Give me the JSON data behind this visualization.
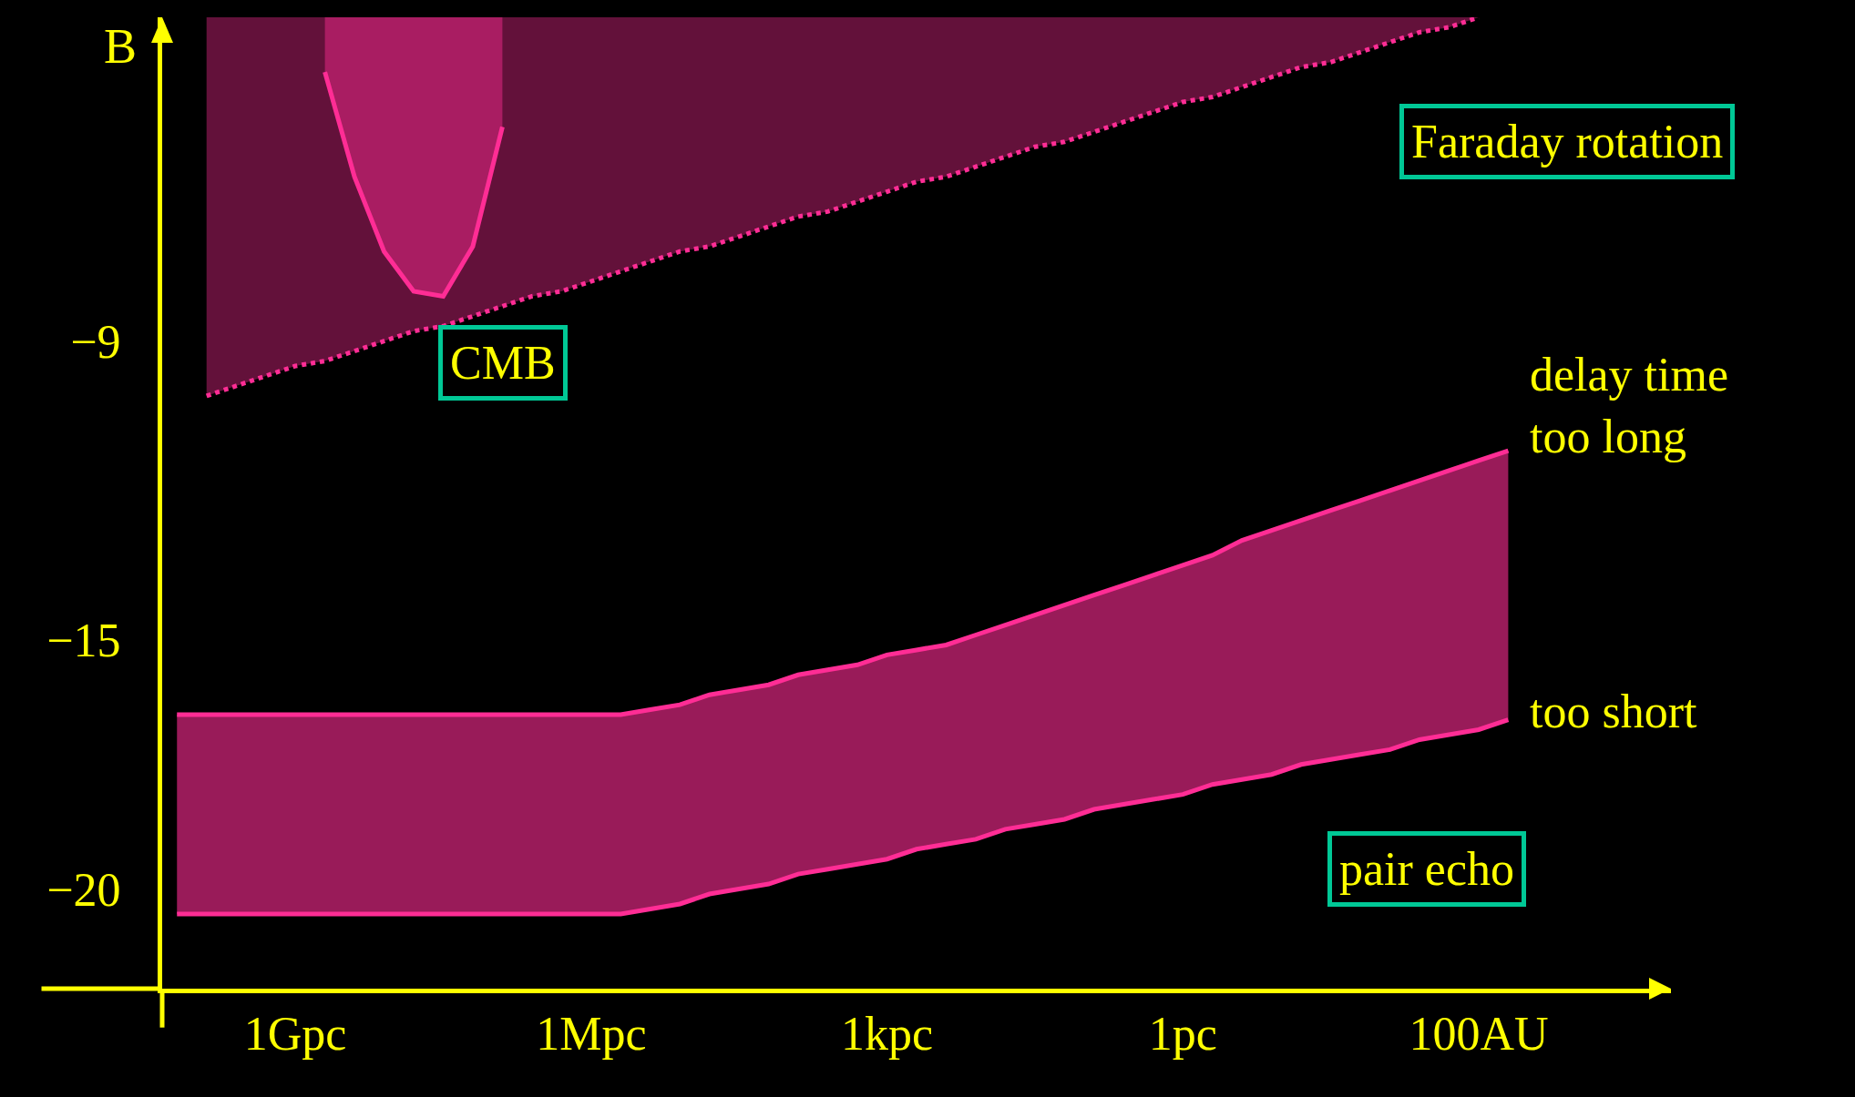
{
  "chart_data": {
    "type": "line",
    "ylabel": "B",
    "categories": [
      null,
      null,
      null,
      null,
      "1Gpc",
      null,
      null,
      null,
      null,
      null,
      null,
      null,
      null,
      null,
      "1Mpc",
      null,
      null,
      null,
      null,
      null,
      null,
      null,
      null,
      null,
      "1kpc",
      null,
      null,
      null,
      null,
      null,
      null,
      null,
      null,
      null,
      "1pc",
      null,
      null,
      null,
      null,
      null,
      null,
      null,
      null,
      null,
      "100AU",
      null
    ],
    "ylim": [
      -22.0,
      -2.5
    ],
    "yticks": [
      -9,
      -15,
      -20
    ],
    "grid": false,
    "series": [
      {
        "color": "#ff2d95",
        "line_style": "dotted",
        "values": [
          null,
          -10.1,
          -9.9,
          -9.7,
          -9.5,
          -9.4,
          -9.2,
          -9.0,
          -8.8,
          -8.7,
          -8.5,
          -8.3,
          -8.1,
          -8.0,
          -7.8,
          -7.6,
          -7.4,
          -7.2,
          -7.1,
          -6.9,
          -6.7,
          -6.5,
          -6.4,
          -6.2,
          -6.0,
          -5.8,
          -5.7,
          -5.5,
          -5.3,
          -5.1,
          -5.0,
          -4.8,
          -4.6,
          -4.4,
          -4.2,
          -4.1,
          -3.9,
          -3.7,
          -3.5,
          -3.4,
          -3.2,
          -3.0,
          -2.8,
          -2.7,
          -2.5,
          null
        ],
        "lower": [
          null,
          -10.1,
          -9.9,
          -9.7,
          -9.5,
          -9.4,
          -9.2,
          -9.0,
          -8.8,
          -8.7,
          -8.5,
          -8.3,
          -8.1,
          -8.0,
          -7.8,
          -7.6,
          -7.4,
          -7.2,
          -7.1,
          -6.9,
          -6.7,
          -6.5,
          -6.4,
          -6.2,
          -6.0,
          -5.8,
          -5.7,
          -5.5,
          -5.3,
          -5.1,
          -5.0,
          -4.8,
          -4.6,
          -4.4,
          -4.2,
          -4.1,
          -3.9,
          -3.7,
          -3.5,
          -3.4,
          -3.2,
          -3.0,
          -2.8,
          -2.7,
          -2.5,
          null
        ],
        "upper": [
          null,
          -2.5,
          -2.5,
          -2.5,
          -2.5,
          -2.5,
          -2.5,
          -2.5,
          -2.5,
          -2.5,
          -2.5,
          -2.5,
          -2.5,
          -2.5,
          -2.5,
          -2.5,
          -2.5,
          -2.5,
          -2.5,
          -2.5,
          -2.5,
          -2.5,
          -2.5,
          -2.5,
          -2.5,
          -2.5,
          -2.5,
          -2.5,
          -2.5,
          -2.5,
          -2.5,
          -2.5,
          -2.5,
          -2.5,
          -2.5,
          -2.5,
          -2.5,
          -2.5,
          -2.5,
          -2.5,
          -2.5,
          -2.5,
          -2.5,
          -2.5,
          -2.5,
          null
        ]
      },
      {
        "color": "#ff2d95",
        "line_style": "solid",
        "values": [
          null,
          null,
          null,
          null,
          null,
          -3.6,
          -5.7,
          -7.2,
          -8.0,
          -8.1,
          -7.1,
          -4.7,
          null,
          null,
          null,
          null,
          null,
          null,
          null,
          null,
          null,
          null,
          null,
          null,
          null,
          null,
          null,
          null,
          null,
          null,
          null,
          null,
          null,
          null,
          null,
          null,
          null,
          null,
          null,
          null,
          null,
          null,
          null,
          null,
          null,
          null
        ],
        "lower": [
          null,
          null,
          null,
          null,
          null,
          -3.6,
          -5.7,
          -7.2,
          -8.0,
          -8.1,
          -7.1,
          -4.7,
          null,
          null,
          null,
          null,
          null,
          null,
          null,
          null,
          null,
          null,
          null,
          null,
          null,
          null,
          null,
          null,
          null,
          null,
          null,
          null,
          null,
          null,
          null,
          null,
          null,
          null,
          null,
          null,
          null,
          null,
          null,
          null,
          null,
          null
        ],
        "upper": [
          null,
          null,
          null,
          null,
          null,
          -2.5,
          -2.5,
          -2.5,
          -2.5,
          -2.5,
          -2.5,
          -2.5,
          null,
          null,
          null,
          null,
          null,
          null,
          null,
          null,
          null,
          null,
          null,
          null,
          null,
          null,
          null,
          null,
          null,
          null,
          null,
          null,
          null,
          null,
          null,
          null,
          null,
          null,
          null,
          null,
          null,
          null,
          null,
          null,
          null,
          null
        ]
      },
      {
        "color": "#ff2d95",
        "line_style": "solid",
        "values": [
          -16.5,
          -16.5,
          -16.5,
          -16.5,
          -16.5,
          -16.5,
          -16.5,
          -16.5,
          -16.5,
          -16.5,
          -16.5,
          -16.5,
          -16.5,
          -16.5,
          -16.5,
          -16.5,
          -16.4,
          -16.3,
          -16.1,
          -16.0,
          -15.9,
          -15.7,
          -15.6,
          -15.5,
          -15.3,
          -15.2,
          -15.1,
          -14.9,
          -14.7,
          -14.5,
          -14.3,
          -14.1,
          -13.9,
          -13.7,
          -13.5,
          -13.3,
          -13.0,
          -12.8,
          -12.6,
          -12.4,
          -12.2,
          -12.0,
          -11.8,
          -11.6,
          -11.4,
          -11.2
        ],
        "lower": [
          -20.5,
          -20.5,
          -20.5,
          -20.5,
          -20.5,
          -20.5,
          -20.5,
          -20.5,
          -20.5,
          -20.5,
          -20.5,
          -20.5,
          -20.5,
          -20.5,
          -20.5,
          -20.5,
          -20.4,
          -20.3,
          -20.1,
          -20.0,
          -19.9,
          -19.7,
          -19.6,
          -19.5,
          -19.4,
          -19.2,
          -19.1,
          -19.0,
          -18.8,
          -18.7,
          -18.6,
          -18.4,
          -18.3,
          -18.2,
          -18.1,
          -17.9,
          -17.8,
          -17.7,
          -17.5,
          -17.4,
          -17.3,
          -17.2,
          -17.0,
          -16.9,
          -16.8,
          -16.6
        ],
        "upper": [
          -16.5,
          -16.5,
          -16.5,
          -16.5,
          -16.5,
          -16.5,
          -16.5,
          -16.5,
          -16.5,
          -16.5,
          -16.5,
          -16.5,
          -16.5,
          -16.5,
          -16.5,
          -16.5,
          -16.4,
          -16.3,
          -16.1,
          -16.0,
          -15.9,
          -15.7,
          -15.6,
          -15.5,
          -15.3,
          -15.2,
          -15.1,
          -14.9,
          -14.7,
          -14.5,
          -14.3,
          -14.1,
          -13.9,
          -13.7,
          -13.5,
          -13.3,
          -13.0,
          -12.8,
          -12.6,
          -12.4,
          -12.2,
          -12.0,
          -11.8,
          -11.6,
          -11.4,
          -11.2
        ]
      },
      {
        "color": "#ff2d95",
        "line_style": "solid",
        "values": [
          -20.5,
          -20.5,
          -20.5,
          -20.5,
          -20.5,
          -20.5,
          -20.5,
          -20.5,
          -20.5,
          -20.5,
          -20.5,
          -20.5,
          -20.5,
          -20.5,
          -20.5,
          -20.5,
          -20.4,
          -20.3,
          -20.1,
          -20.0,
          -19.9,
          -19.7,
          -19.6,
          -19.5,
          -19.4,
          -19.2,
          -19.1,
          -19.0,
          -18.8,
          -18.7,
          -18.6,
          -18.4,
          -18.3,
          -18.2,
          -18.1,
          -17.9,
          -17.8,
          -17.7,
          -17.5,
          -17.4,
          -17.3,
          -17.2,
          -17.0,
          -16.9,
          -16.8,
          -16.6
        ]
      }
    ],
    "annotations": [
      "Faraday rotation",
      "CMB",
      "pair echo",
      "delay time\ntoo long",
      "too short"
    ]
  }
}
